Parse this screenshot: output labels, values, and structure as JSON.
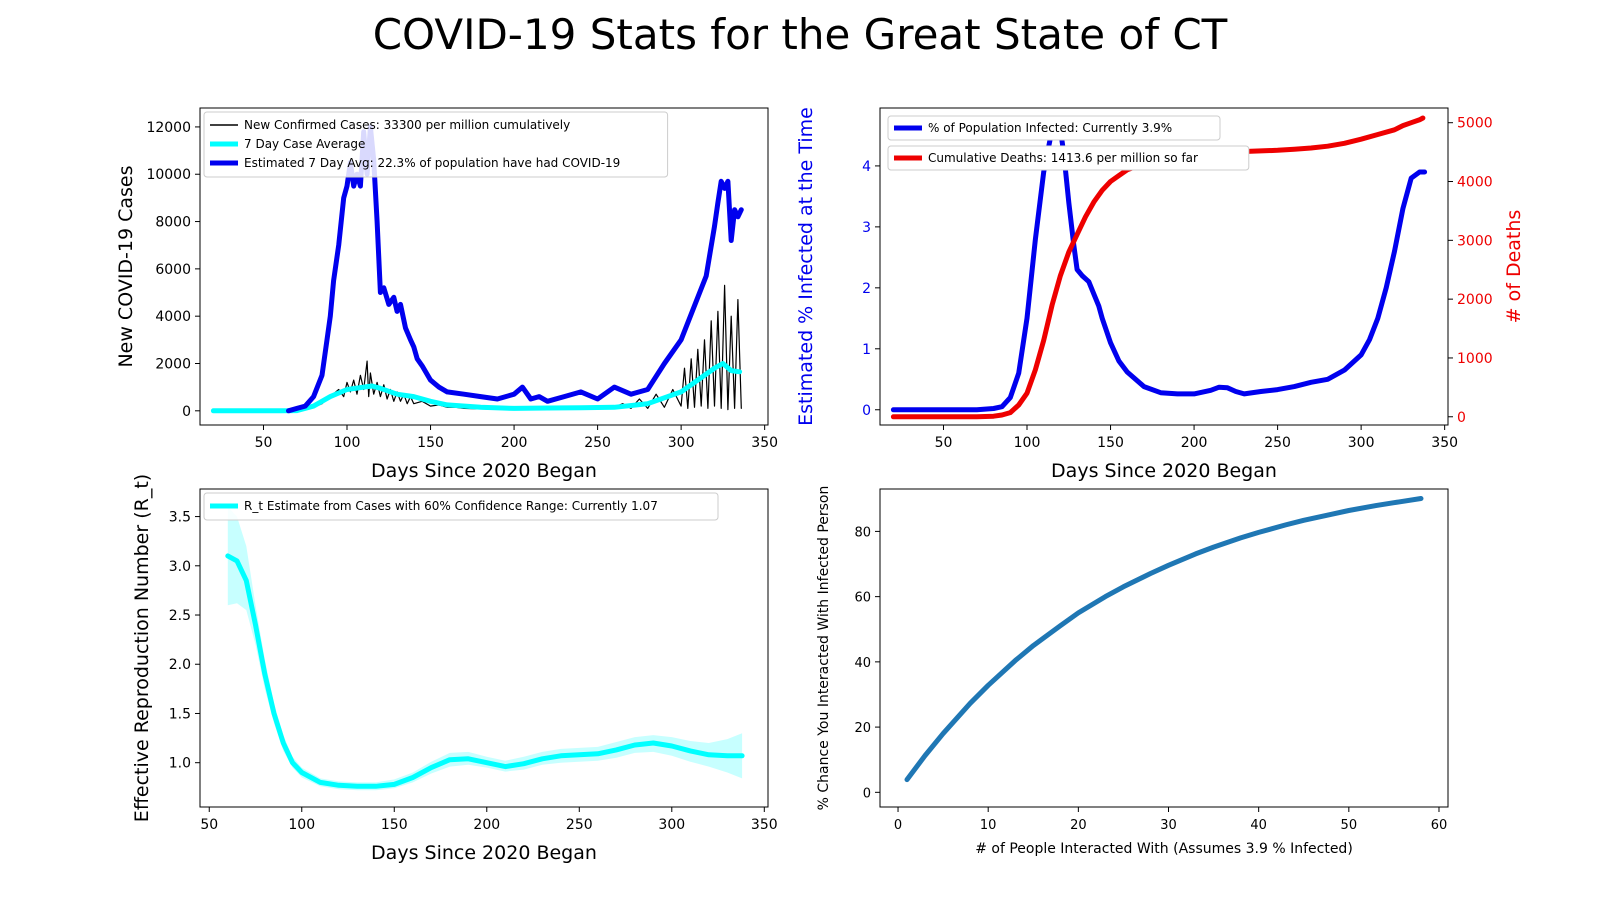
{
  "title": "COVID-19 Stats for the Great State of CT",
  "colors": {
    "blue": "#0000ee",
    "cyan": "#00ffff",
    "red": "#ee0000",
    "black": "#000000",
    "steel": "#1f77b4"
  },
  "chart_data": [
    {
      "type": "line",
      "xlabel": "Days Since 2020 Began",
      "ylabel": "New COVID-19 Cases",
      "xlim": [
        12,
        352
      ],
      "ylim": [
        -600,
        12800
      ],
      "xticks": [
        50,
        100,
        150,
        200,
        250,
        300,
        350
      ],
      "yticks": [
        0,
        2000,
        4000,
        6000,
        8000,
        10000,
        12000
      ],
      "legend_position": "top-left",
      "series": [
        {
          "name": "New Confirmed Cases: 33300 per million cumulatively",
          "color": "#000000",
          "width": 1.2,
          "x": [
            20,
            60,
            70,
            80,
            85,
            90,
            95,
            98,
            100,
            102,
            104,
            106,
            108,
            110,
            112,
            113,
            114,
            116,
            118,
            120,
            122,
            124,
            126,
            128,
            130,
            132,
            134,
            136,
            138,
            140,
            145,
            150,
            155,
            160,
            165,
            170,
            180,
            190,
            200,
            210,
            220,
            230,
            240,
            250,
            255,
            260,
            265,
            270,
            275,
            280,
            285,
            290,
            295,
            300,
            302,
            304,
            306,
            308,
            310,
            312,
            314,
            316,
            318,
            320,
            322,
            324,
            326,
            328,
            330,
            332,
            334,
            336
          ],
          "y": [
            0,
            0,
            10,
            150,
            300,
            600,
            900,
            600,
            1200,
            800,
            1300,
            700,
            1500,
            900,
            2100,
            600,
            1600,
            700,
            1200,
            600,
            1100,
            500,
            900,
            400,
            800,
            400,
            700,
            300,
            600,
            300,
            400,
            200,
            250,
            150,
            150,
            100,
            80,
            70,
            60,
            80,
            90,
            60,
            80,
            90,
            200,
            150,
            300,
            100,
            500,
            100,
            700,
            150,
            900,
            200,
            1800,
            100,
            2200,
            150,
            2600,
            200,
            3000,
            100,
            3800,
            200,
            4200,
            100,
            5300,
            50,
            4000,
            100,
            4700,
            100
          ]
        },
        {
          "name": "7 Day Case Average",
          "color": "#00ffff",
          "width": 5,
          "x": [
            20,
            60,
            70,
            80,
            90,
            100,
            105,
            110,
            115,
            120,
            130,
            140,
            150,
            160,
            180,
            200,
            220,
            240,
            260,
            280,
            300,
            310,
            320,
            325,
            330,
            335
          ],
          "y": [
            0,
            0,
            10,
            200,
            600,
            900,
            950,
            1000,
            1050,
            950,
            700,
            600,
            400,
            250,
            150,
            100,
            120,
            130,
            150,
            300,
            800,
            1300,
            1800,
            2000,
            1700,
            1650
          ]
        },
        {
          "name": "Estimated 7 Day Avg: 22.3% of population have had COVID-19",
          "color": "#0000ee",
          "width": 5,
          "x": [
            65,
            70,
            75,
            80,
            85,
            88,
            90,
            92,
            95,
            98,
            100,
            102,
            104,
            106,
            108,
            110,
            112,
            114,
            116,
            118,
            120,
            122,
            125,
            128,
            130,
            132,
            135,
            138,
            140,
            142,
            145,
            150,
            155,
            160,
            170,
            180,
            190,
            200,
            205,
            210,
            215,
            220,
            230,
            240,
            250,
            260,
            270,
            280,
            290,
            300,
            310,
            315,
            320,
            322,
            324,
            326,
            328,
            330,
            332,
            334,
            336
          ],
          "y": [
            0,
            100,
            200,
            600,
            1500,
            3000,
            4000,
            5500,
            7000,
            9000,
            9500,
            10500,
            9500,
            10000,
            9500,
            11800,
            10000,
            12000,
            10600,
            8000,
            5000,
            5200,
            4500,
            4800,
            4200,
            4500,
            3500,
            3000,
            2700,
            2200,
            1900,
            1300,
            1000,
            800,
            700,
            600,
            500,
            700,
            1000,
            500,
            600,
            400,
            600,
            800,
            500,
            1000,
            700,
            900,
            2000,
            3000,
            4800,
            5700,
            7800,
            8800,
            9700,
            9400,
            9700,
            7200,
            8500,
            8200,
            8500
          ]
        }
      ]
    },
    {
      "type": "line",
      "xlabel": "Days Since 2020 Began",
      "ylabel": "Estimated % Infected at the Time",
      "ylabel2": "# of Deaths",
      "xlim": [
        12,
        352
      ],
      "ylim": [
        -0.25,
        4.95
      ],
      "ylim2": [
        -140,
        5250
      ],
      "xticks": [
        50,
        100,
        150,
        200,
        250,
        300,
        350
      ],
      "yticks": [
        0,
        1,
        2,
        3,
        4
      ],
      "yticks2": [
        0,
        1000,
        2000,
        3000,
        4000,
        5000
      ],
      "legend_position": "top-left",
      "series": [
        {
          "name": "% of Population Infected: Currently 3.9%",
          "color": "#0000ee",
          "width": 5,
          "axis": "left",
          "x": [
            20,
            70,
            80,
            85,
            90,
            95,
            100,
            105,
            110,
            115,
            118,
            120,
            122,
            125,
            128,
            130,
            133,
            135,
            137,
            140,
            143,
            145,
            150,
            155,
            160,
            170,
            180,
            190,
            200,
            210,
            215,
            220,
            225,
            230,
            240,
            250,
            260,
            270,
            280,
            290,
            300,
            305,
            310,
            315,
            320,
            325,
            330,
            335,
            338
          ],
          "y": [
            0,
            0,
            0.02,
            0.05,
            0.2,
            0.6,
            1.5,
            2.8,
            3.9,
            4.6,
            4.75,
            4.6,
            4.2,
            3.4,
            2.7,
            2.3,
            2.2,
            2.15,
            2.1,
            1.9,
            1.7,
            1.5,
            1.1,
            0.8,
            0.62,
            0.38,
            0.28,
            0.26,
            0.26,
            0.32,
            0.37,
            0.36,
            0.3,
            0.26,
            0.3,
            0.33,
            0.38,
            0.45,
            0.5,
            0.65,
            0.9,
            1.15,
            1.5,
            2.0,
            2.6,
            3.3,
            3.8,
            3.9,
            3.9
          ]
        },
        {
          "name": "Cumulative Deaths: 1413.6 per million so far",
          "color": "#ee0000",
          "width": 5,
          "axis": "right",
          "x": [
            20,
            70,
            80,
            85,
            90,
            95,
            100,
            105,
            110,
            115,
            120,
            125,
            130,
            135,
            140,
            145,
            150,
            155,
            160,
            170,
            180,
            190,
            200,
            210,
            220,
            230,
            240,
            250,
            260,
            270,
            280,
            290,
            300,
            310,
            320,
            325,
            330,
            335,
            337
          ],
          "y": [
            0,
            0,
            10,
            30,
            70,
            200,
            400,
            800,
            1300,
            1900,
            2400,
            2800,
            3100,
            3400,
            3650,
            3850,
            4000,
            4100,
            4200,
            4300,
            4380,
            4420,
            4450,
            4480,
            4500,
            4510,
            4520,
            4530,
            4550,
            4570,
            4600,
            4650,
            4720,
            4800,
            4880,
            4950,
            5000,
            5050,
            5080
          ]
        }
      ]
    },
    {
      "type": "area",
      "xlabel": "Days Since 2020 Began",
      "ylabel": "Effective Reproduction Number (R_t)",
      "xlim": [
        45,
        352
      ],
      "ylim": [
        0.55,
        3.78
      ],
      "xticks": [
        50,
        100,
        150,
        200,
        250,
        300,
        350
      ],
      "yticks": [
        1.0,
        1.5,
        2.0,
        2.5,
        3.0,
        3.5
      ],
      "legend_position": "top-left",
      "series": [
        {
          "name": "R_t Estimate from Cases with 60% Confidence Range: Currently 1.07",
          "color": "#00ffff",
          "width": 5,
          "x": [
            60,
            65,
            70,
            75,
            80,
            85,
            90,
            95,
            100,
            110,
            120,
            130,
            140,
            150,
            160,
            170,
            180,
            190,
            200,
            210,
            220,
            230,
            240,
            250,
            260,
            270,
            280,
            290,
            300,
            310,
            320,
            330,
            338
          ],
          "y": [
            3.1,
            3.05,
            2.85,
            2.4,
            1.9,
            1.5,
            1.2,
            1.0,
            0.9,
            0.8,
            0.77,
            0.76,
            0.76,
            0.78,
            0.85,
            0.95,
            1.03,
            1.04,
            1.0,
            0.96,
            0.99,
            1.04,
            1.07,
            1.08,
            1.09,
            1.13,
            1.18,
            1.2,
            1.17,
            1.12,
            1.08,
            1.07,
            1.07
          ],
          "lower": [
            2.6,
            2.62,
            2.55,
            2.2,
            1.75,
            1.4,
            1.12,
            0.95,
            0.85,
            0.76,
            0.73,
            0.72,
            0.72,
            0.74,
            0.8,
            0.89,
            0.96,
            0.98,
            0.95,
            0.91,
            0.93,
            0.98,
            1.0,
            1.01,
            1.02,
            1.05,
            1.1,
            1.11,
            1.07,
            1.01,
            0.96,
            0.9,
            0.84
          ],
          "upper": [
            3.6,
            3.5,
            3.2,
            2.6,
            2.05,
            1.6,
            1.28,
            1.06,
            0.95,
            0.84,
            0.81,
            0.8,
            0.8,
            0.83,
            0.9,
            1.01,
            1.1,
            1.11,
            1.06,
            1.02,
            1.06,
            1.11,
            1.14,
            1.15,
            1.16,
            1.21,
            1.26,
            1.28,
            1.26,
            1.22,
            1.2,
            1.24,
            1.3
          ]
        }
      ]
    },
    {
      "type": "line",
      "xlabel": "# of People Interacted With (Assumes 3.9 % Infected)",
      "ylabel": "% Chance You Interacted With Infected Person",
      "xlim": [
        -2,
        61
      ],
      "ylim": [
        -4.5,
        93
      ],
      "xticks": [
        0,
        10,
        20,
        30,
        40,
        50,
        60
      ],
      "yticks": [
        0,
        20,
        40,
        60,
        80
      ],
      "series": [
        {
          "color": "#1f77b4",
          "width": 5,
          "x": [
            1,
            3,
            5,
            8,
            10,
            13,
            15,
            18,
            20,
            23,
            25,
            28,
            30,
            33,
            35,
            38,
            40,
            43,
            45,
            48,
            50,
            53,
            55,
            58
          ],
          "y": [
            3.9,
            11.3,
            18.0,
            27.3,
            32.8,
            40.4,
            45.0,
            51.1,
            55.0,
            60.0,
            63.0,
            67.1,
            69.6,
            73.1,
            75.2,
            78.0,
            79.7,
            82.0,
            83.4,
            85.2,
            86.4,
            87.9,
            88.8,
            90.1
          ]
        }
      ]
    }
  ]
}
